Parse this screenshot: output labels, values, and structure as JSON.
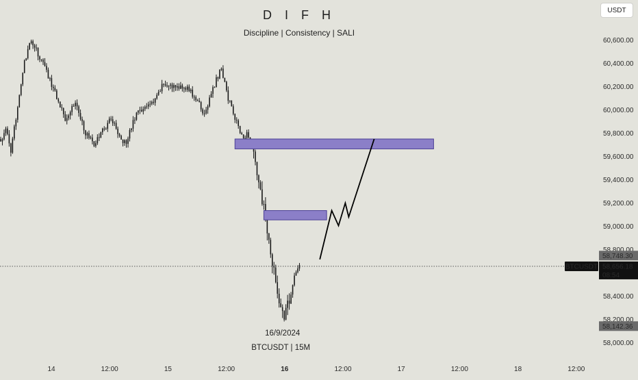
{
  "header": {
    "title": "D I F H",
    "subtitle": "Discipline | Consistency | SALI",
    "currency_button": "USDT"
  },
  "colors": {
    "background": "#e3e3dc",
    "candle": "#1a1a1a",
    "zone_fill": "#8b7fc8",
    "zone_stroke": "#4b3f95",
    "projection": "#000000",
    "price_label_dark": "#111111",
    "price_label_gray": "#6a6a6a"
  },
  "chart_data": {
    "type": "candlestick",
    "symbol": "BTCUSDT",
    "interval": "15M",
    "ylim": [
      57870,
      60820
    ],
    "y_ticks": [
      {
        "value": 58000,
        "label": "58,000.00"
      },
      {
        "value": 58200,
        "label": "58,200.00"
      },
      {
        "value": 58400,
        "label": "58,400.00"
      },
      {
        "value": 58600,
        "label": "58,600.00"
      },
      {
        "value": 58800,
        "label": "58,800.00"
      },
      {
        "value": 59000,
        "label": "59,000.00"
      },
      {
        "value": 59200,
        "label": "59,200.00"
      },
      {
        "value": 59400,
        "label": "59,400.00"
      },
      {
        "value": 59600,
        "label": "59,600.00"
      },
      {
        "value": 59800,
        "label": "59,800.00"
      },
      {
        "value": 60000,
        "label": "60,000.00"
      },
      {
        "value": 60200,
        "label": "60,200.00"
      },
      {
        "value": 60400,
        "label": "60,400.00"
      },
      {
        "value": 60600,
        "label": "60,600.00"
      }
    ],
    "x_ticks": [
      {
        "label": "14",
        "bold": false
      },
      {
        "label": "12:00",
        "bold": false
      },
      {
        "label": "15",
        "bold": false
      },
      {
        "label": "12:00",
        "bold": false
      },
      {
        "label": "16",
        "bold": true
      },
      {
        "label": "12:00",
        "bold": false
      },
      {
        "label": "17",
        "bold": false
      },
      {
        "label": "12:00",
        "bold": false
      },
      {
        "label": "18",
        "bold": false
      },
      {
        "label": "12:00",
        "bold": false
      }
    ],
    "path_points": [
      {
        "c": 0,
        "p": 59720
      },
      {
        "c": 3,
        "p": 59850
      },
      {
        "c": 6,
        "p": 59620
      },
      {
        "c": 10,
        "p": 60050
      },
      {
        "c": 14,
        "p": 60400
      },
      {
        "c": 18,
        "p": 60600
      },
      {
        "c": 22,
        "p": 60480
      },
      {
        "c": 27,
        "p": 60330
      },
      {
        "c": 32,
        "p": 60150
      },
      {
        "c": 38,
        "p": 59930
      },
      {
        "c": 44,
        "p": 60070
      },
      {
        "c": 50,
        "p": 59800
      },
      {
        "c": 55,
        "p": 59700
      },
      {
        "c": 60,
        "p": 59820
      },
      {
        "c": 65,
        "p": 59930
      },
      {
        "c": 70,
        "p": 59780
      },
      {
        "c": 74,
        "p": 59700
      },
      {
        "c": 78,
        "p": 59920
      },
      {
        "c": 84,
        "p": 60020
      },
      {
        "c": 90,
        "p": 60050
      },
      {
        "c": 96,
        "p": 60230
      },
      {
        "c": 102,
        "p": 60190
      },
      {
        "c": 108,
        "p": 60210
      },
      {
        "c": 114,
        "p": 60120
      },
      {
        "c": 120,
        "p": 59960
      },
      {
        "c": 126,
        "p": 60220
      },
      {
        "c": 130,
        "p": 60360
      },
      {
        "c": 134,
        "p": 60100
      },
      {
        "c": 138,
        "p": 59930
      },
      {
        "c": 142,
        "p": 59780
      },
      {
        "c": 146,
        "p": 59790
      },
      {
        "c": 149,
        "p": 59600
      },
      {
        "c": 152,
        "p": 59380
      },
      {
        "c": 155,
        "p": 59150
      },
      {
        "c": 158,
        "p": 58850
      },
      {
        "c": 161,
        "p": 58600
      },
      {
        "c": 164,
        "p": 58380
      },
      {
        "c": 167,
        "p": 58200
      },
      {
        "c": 170,
        "p": 58380
      },
      {
        "c": 173,
        "p": 58550
      },
      {
        "c": 176,
        "p": 58680
      }
    ],
    "zones": [
      {
        "top": 59750,
        "bottom": 59665,
        "c_start": 138,
        "c_end": 255
      },
      {
        "top": 59135,
        "bottom": 59055,
        "c_start": 155,
        "c_end": 192
      }
    ],
    "projection": [
      {
        "c": 188,
        "p": 58715
      },
      {
        "c": 195,
        "p": 59135
      },
      {
        "c": 199,
        "p": 59005
      },
      {
        "c": 203,
        "p": 59200
      },
      {
        "c": 205,
        "p": 59080
      },
      {
        "c": 220,
        "p": 59750
      }
    ],
    "current_price": 58656.18,
    "current_price_label": "58,656.18",
    "countdown": "08:54",
    "upper_marker": {
      "value": 58748.3,
      "label": "58,748.30"
    },
    "lower_marker": {
      "value": 58142.36,
      "label": "58,142.36"
    },
    "symbol_label": "BTCUSDT",
    "annotation_date": "16/9/2024",
    "annotation_symbol": "BTCUSDT | 15M"
  }
}
